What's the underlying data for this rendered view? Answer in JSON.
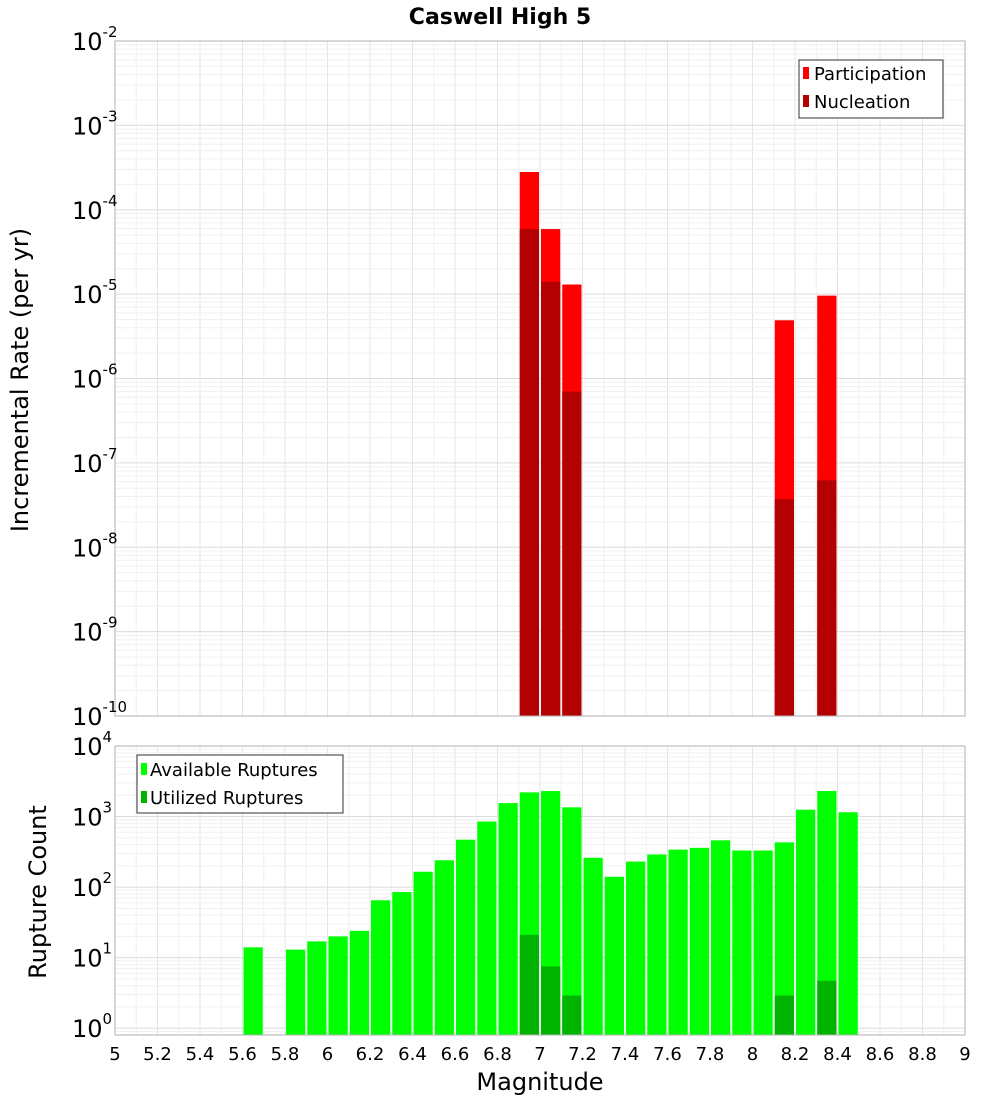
{
  "chart_data": [
    {
      "type": "bar",
      "title": "Caswell High 5",
      "xlabel": "",
      "ylabel": "Incremental Rate (per yr)",
      "yscale": "log",
      "ylim": [
        1e-10,
        0.01
      ],
      "xlim": [
        5,
        9
      ],
      "bar_width": 0.1,
      "grid": true,
      "legend_position": "top-right",
      "series": [
        {
          "name": "Participation",
          "color": "#ff0000",
          "x": [
            6.95,
            7.05,
            7.15,
            8.15,
            8.35
          ],
          "values": [
            0.00028,
            5.9e-05,
            1.3e-05,
            4.9e-06,
            9.6e-06
          ]
        },
        {
          "name": "Nucleation",
          "color": "#b30000",
          "x": [
            6.95,
            7.05,
            7.15,
            8.15,
            8.35
          ],
          "values": [
            5.9e-05,
            1.4e-05,
            7e-07,
            3.7e-08,
            6.2e-08
          ]
        }
      ],
      "y_ticks": [
        {
          "base": "10",
          "exp": "-10"
        },
        {
          "base": "10",
          "exp": "-9"
        },
        {
          "base": "10",
          "exp": "-8"
        },
        {
          "base": "10",
          "exp": "-7"
        },
        {
          "base": "10",
          "exp": "-6"
        },
        {
          "base": "10",
          "exp": "-5"
        },
        {
          "base": "10",
          "exp": "-4"
        },
        {
          "base": "10",
          "exp": "-3"
        },
        {
          "base": "10",
          "exp": "-2"
        }
      ]
    },
    {
      "type": "bar",
      "title": "",
      "xlabel": "Magnitude",
      "ylabel": "Rupture Count",
      "yscale": "log",
      "ylim": [
        0.8,
        10000
      ],
      "xlim": [
        5,
        9
      ],
      "bar_width": 0.1,
      "grid": true,
      "legend_position": "top-left",
      "series": [
        {
          "name": "Available Ruptures",
          "color": "#00ff00",
          "x": [
            5.65,
            5.85,
            5.95,
            6.05,
            6.15,
            6.25,
            6.35,
            6.45,
            6.55,
            6.65,
            6.75,
            6.85,
            6.95,
            7.05,
            7.15,
            7.25,
            7.35,
            7.45,
            7.55,
            7.65,
            7.75,
            7.85,
            7.95,
            8.05,
            8.15,
            8.25,
            8.35,
            8.45
          ],
          "values": [
            14,
            13,
            17,
            20,
            24,
            65,
            85,
            165,
            240,
            470,
            850,
            1550,
            2200,
            2300,
            1350,
            260,
            140,
            230,
            290,
            340,
            360,
            460,
            330,
            330,
            430,
            1250,
            2300,
            1150
          ]
        },
        {
          "name": "Utilized Ruptures",
          "color": "#00b300",
          "x": [
            6.95,
            7.05,
            7.15,
            8.15,
            8.35
          ],
          "values": [
            21,
            7.5,
            2.9,
            2.9,
            4.7
          ]
        }
      ],
      "y_ticks": [
        {
          "base": "10",
          "exp": "0"
        },
        {
          "base": "10",
          "exp": "1"
        },
        {
          "base": "10",
          "exp": "2"
        },
        {
          "base": "10",
          "exp": "3"
        },
        {
          "base": "10",
          "exp": "4"
        }
      ],
      "x_ticks": [
        "5",
        "5.2",
        "5.4",
        "5.6",
        "5.8",
        "6",
        "6.2",
        "6.4",
        "6.6",
        "6.8",
        "7",
        "7.2",
        "7.4",
        "7.6",
        "7.8",
        "8",
        "8.2",
        "8.4",
        "8.6",
        "8.8",
        "9"
      ]
    }
  ]
}
